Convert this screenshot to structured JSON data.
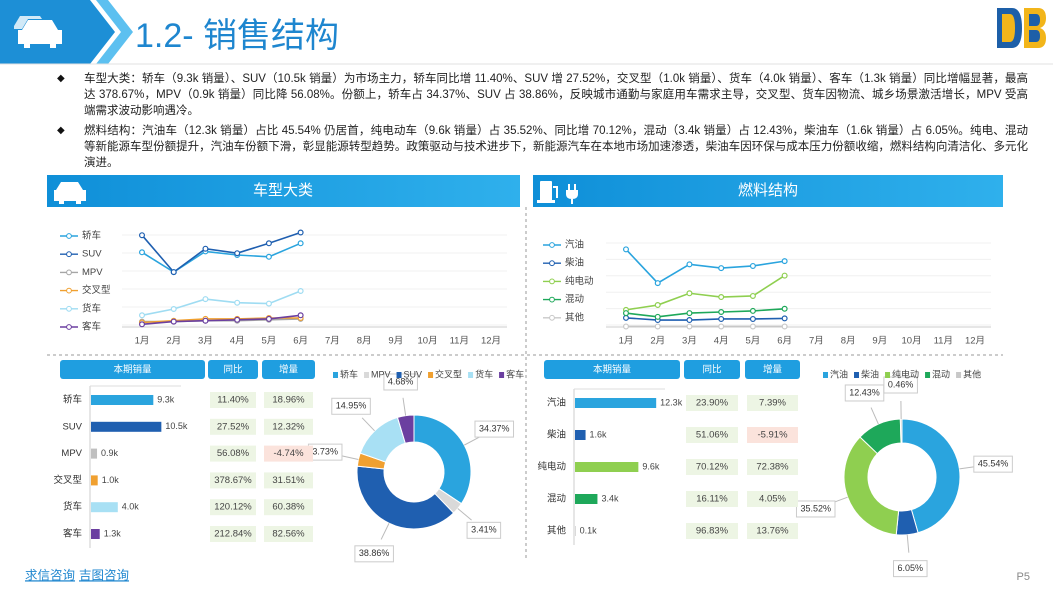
{
  "header": {
    "title": "1.2- 销售结构"
  },
  "bullets": [
    "车型大类：轿车（9.3k 销量）、SUV（10.5k 销量）为市场主力，轿车同比增 11.40%、SUV 增 27.52%，交叉型（1.0k 销量）、货车（4.0k 销量）、客车（1.3k 销量）同比增幅显著，最高达 378.67%，MPV（0.9k 销量）同比降 56.08%。份额上，轿车占 34.37%、SUV 占 38.86%，反映城市通勤与家庭用车需求主导，交叉型、货车因物流、城乡场景激活增长，MPV 受高端需求波动影响遇冷。",
    "燃料结构：汽油车（12.3k 销量）占比 45.54% 仍居首，纯电动车（9.6k 销量）占 35.52%、同比增 70.12%，混动（3.4k 销量）占 12.43%，柴油车（1.6k 销量）占 6.05%。纯电、混动等新能源车型份额提升，汽油车份额下滑，彰显能源转型趋势。政策驱动与技术进步下，新能源汽车在本地市场加速渗透，柴油车因环保与成本压力份额收缩，燃料结构向清洁化、多元化演进。"
  ],
  "sections": [
    {
      "title": "车型大类"
    },
    {
      "title": "燃料结构"
    }
  ],
  "chart_data": [
    {
      "type": "line",
      "categories": [
        "1月",
        "2月",
        "3月",
        "4月",
        "5月",
        "6月",
        "7月",
        "8月",
        "9月",
        "10月",
        "11月",
        "12月"
      ],
      "ylim": [
        0,
        11.5
      ],
      "series": [
        {
          "name": "轿车",
          "color": "#2aa4de",
          "values": [
            8.3,
            6.1,
            8.4,
            8.0,
            7.8,
            9.3,
            null,
            null,
            null,
            null,
            null,
            null
          ]
        },
        {
          "name": "SUV",
          "color": "#1f5fb0",
          "values": [
            10.2,
            6.1,
            8.7,
            8.2,
            9.3,
            10.5,
            null,
            null,
            null,
            null,
            null,
            null
          ]
        },
        {
          "name": "MPV",
          "color": "#a6a6a6",
          "values": [
            0.6,
            0.6,
            0.7,
            0.7,
            0.8,
            0.9,
            null,
            null,
            null,
            null,
            null,
            null
          ]
        },
        {
          "name": "交叉型",
          "color": "#f0a030",
          "values": [
            0.5,
            0.7,
            0.9,
            0.9,
            1.0,
            1.0,
            null,
            null,
            null,
            null,
            null,
            null
          ]
        },
        {
          "name": "货车",
          "color": "#9fdcf2",
          "values": [
            1.3,
            2.0,
            3.1,
            2.7,
            2.6,
            4.0,
            null,
            null,
            null,
            null,
            null,
            null
          ]
        },
        {
          "name": "客车",
          "color": "#6b3fa0",
          "values": [
            0.3,
            0.6,
            0.7,
            0.8,
            0.9,
            1.3,
            null,
            null,
            null,
            null,
            null,
            null
          ]
        }
      ]
    },
    {
      "type": "line",
      "categories": [
        "1月",
        "2月",
        "3月",
        "4月",
        "5月",
        "6月",
        "7月",
        "8月",
        "9月",
        "10月",
        "11月",
        "12月"
      ],
      "ylim": [
        0,
        15.5
      ],
      "series": [
        {
          "name": "汽油",
          "color": "#2aa4de",
          "values": [
            14.5,
            8.2,
            11.7,
            11.0,
            11.4,
            12.3,
            null,
            null,
            null,
            null,
            null,
            null
          ]
        },
        {
          "name": "柴油",
          "color": "#1f5fb0",
          "values": [
            1.7,
            1.3,
            1.3,
            1.5,
            1.5,
            1.6,
            null,
            null,
            null,
            null,
            null,
            null
          ]
        },
        {
          "name": "纯电动",
          "color": "#8fcf50",
          "values": [
            3.2,
            4.1,
            6.3,
            5.6,
            5.8,
            9.6,
            null,
            null,
            null,
            null,
            null,
            null
          ]
        },
        {
          "name": "混动",
          "color": "#1ea85a",
          "values": [
            2.6,
            1.9,
            2.6,
            2.8,
            3.0,
            3.4,
            null,
            null,
            null,
            null,
            null,
            null
          ]
        },
        {
          "name": "其他",
          "color": "#c8c8c8",
          "values": [
            0.1,
            0.1,
            0.1,
            0.1,
            0.1,
            0.1,
            null,
            null,
            null,
            null,
            null,
            null
          ]
        }
      ]
    },
    {
      "type": "pie",
      "donut": true,
      "categories": [
        "轿车",
        "MPV",
        "SUV",
        "交叉型",
        "货车",
        "客车"
      ],
      "values": [
        34.37,
        3.41,
        38.86,
        3.73,
        14.95,
        4.68
      ],
      "value_labels": [
        "34.37%",
        "3.41%",
        "38.86%",
        "3.73%",
        "14.95%",
        "4.68%"
      ],
      "colors": [
        "#2aa4de",
        "#d9d9d9",
        "#1f5fb0",
        "#f0a030",
        "#a8e0f4",
        "#6b3fa0"
      ]
    },
    {
      "type": "pie",
      "donut": true,
      "categories": [
        "汽油",
        "柴油",
        "纯电动",
        "混动",
        "其他"
      ],
      "values": [
        45.54,
        6.05,
        35.52,
        12.43,
        0.46
      ],
      "value_labels": [
        "45.54%",
        "6.05%",
        "35.52%",
        "12.43%",
        "0.46%"
      ],
      "colors": [
        "#2aa4de",
        "#1f5fb0",
        "#8fcf50",
        "#1ea85a",
        "#c8c8c8"
      ]
    }
  ],
  "tables": [
    {
      "headers": [
        "本期销量",
        "同比",
        "增量"
      ],
      "xlim": [
        0,
        12
      ],
      "colors": [
        "#2aa4de",
        "#1f5fb0",
        "#bfbfbf",
        "#f0a030",
        "#a8e0f4",
        "#6b3fa0"
      ],
      "rows": [
        {
          "name": "轿车",
          "sales": 9.3,
          "sales_label": "9.3k",
          "yoy": "11.40%",
          "increment": "18.96%"
        },
        {
          "name": "SUV",
          "sales": 10.5,
          "sales_label": "10.5k",
          "yoy": "27.52%",
          "increment": "12.32%"
        },
        {
          "name": "MPV",
          "sales": 0.9,
          "sales_label": "0.9k",
          "yoy": "56.08%",
          "increment": "-4.74%"
        },
        {
          "name": "交叉型",
          "sales": 1.0,
          "sales_label": "1.0k",
          "yoy": "378.67%",
          "increment": "31.51%"
        },
        {
          "name": "货车",
          "sales": 4.0,
          "sales_label": "4.0k",
          "yoy": "120.12%",
          "increment": "60.38%"
        },
        {
          "name": "客车",
          "sales": 1.3,
          "sales_label": "1.3k",
          "yoy": "212.84%",
          "increment": "82.56%"
        }
      ]
    },
    {
      "headers": [
        "本期销量",
        "同比",
        "增量"
      ],
      "xlim": [
        0,
        12
      ],
      "colors": [
        "#2aa4de",
        "#1f5fb0",
        "#8fcf50",
        "#1ea85a",
        "#c8c8c8"
      ],
      "rows": [
        {
          "name": "汽油",
          "sales": 12.3,
          "sales_label": "12.3k",
          "yoy": "23.90%",
          "increment": "7.39%"
        },
        {
          "name": "柴油",
          "sales": 1.6,
          "sales_label": "1.6k",
          "yoy": "51.06%",
          "increment": "-5.91%"
        },
        {
          "name": "纯电动",
          "sales": 9.6,
          "sales_label": "9.6k",
          "yoy": "70.12%",
          "increment": "72.38%"
        },
        {
          "name": "混动",
          "sales": 3.4,
          "sales_label": "3.4k",
          "yoy": "16.11%",
          "increment": "4.05%"
        },
        {
          "name": "其他",
          "sales": 0.1,
          "sales_label": "0.1k",
          "yoy": "96.83%",
          "increment": "13.76%"
        }
      ]
    }
  ],
  "footer": {
    "links": [
      "求信咨询",
      "吉图咨询"
    ],
    "page": "P5"
  }
}
